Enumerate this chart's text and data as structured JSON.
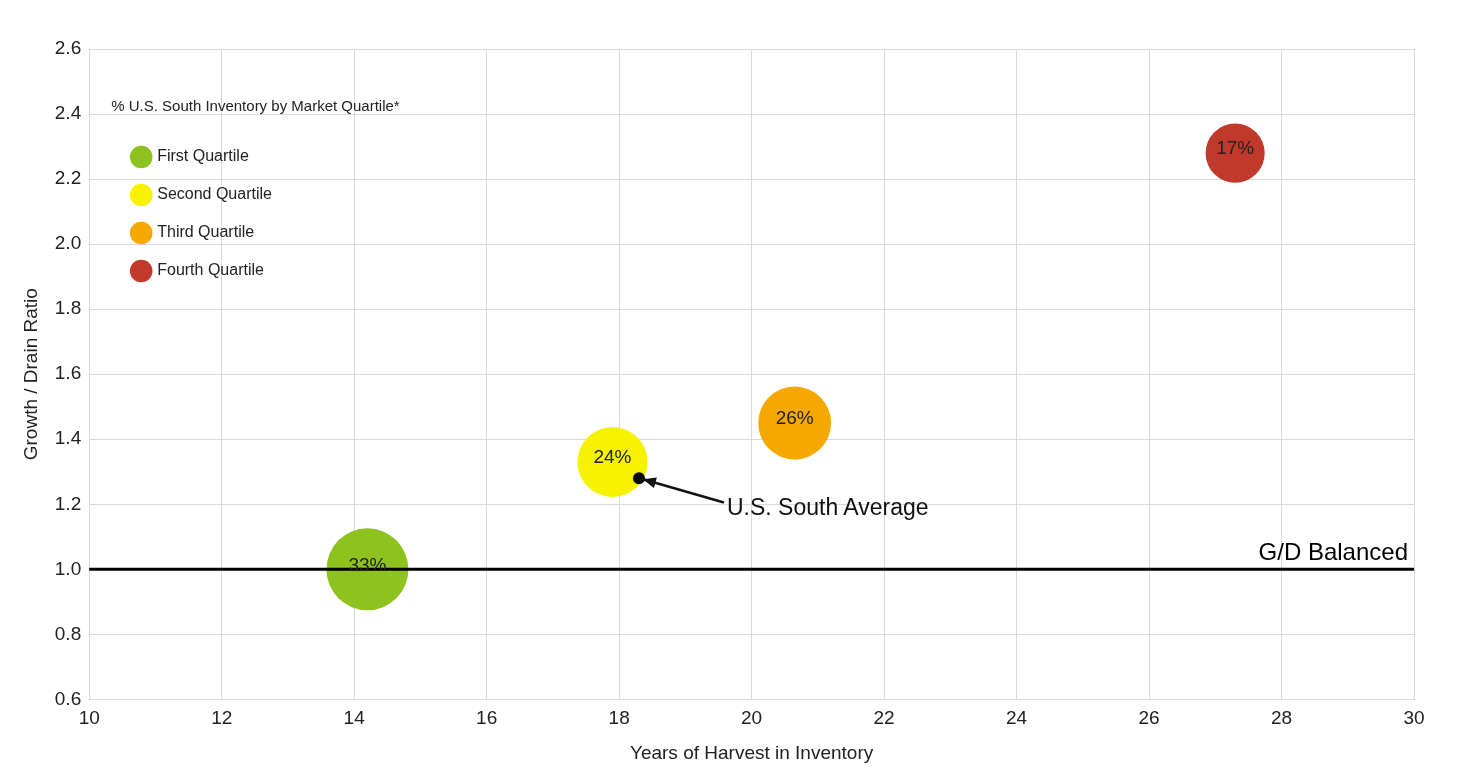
{
  "chart_data": {
    "type": "bubble",
    "xlabel": "Years of Harvest in Inventory",
    "ylabel": "Growth / Drain Ratio",
    "legend_title": "% U.S. South Inventory by Market Quartile*",
    "legend": "top left",
    "grid": true,
    "xlim": [
      10,
      30
    ],
    "xticks": [
      10,
      12,
      14,
      16,
      18,
      20,
      22,
      24,
      26,
      28,
      30
    ],
    "ylim": [
      0.6,
      2.6
    ],
    "yticks": [
      0.6,
      0.8,
      {
        "value": 1,
        "label": "1.0"
      },
      1.2,
      1.4,
      1.6,
      1.8,
      {
        "value": 2,
        "label": "2.0"
      },
      2.2,
      2.4,
      2.6
    ],
    "series": [
      {
        "name": "First Quartile",
        "color": "#8dc21f",
        "x": [
          14.2
        ],
        "values": [
          1.0
        ],
        "sizes": [
          1
        ]
      },
      {
        "name": "Second Quartile",
        "color": "#f7f200",
        "x": [
          17.9
        ],
        "values": [
          1.33
        ],
        "sizes": [
          0.73
        ]
      },
      {
        "name": "Third Quartile",
        "color": "#f5a800",
        "x": [
          20.65
        ],
        "values": [
          1.45
        ],
        "sizes": [
          0.79
        ]
      },
      {
        "name": "Fourth Quartile",
        "color": "#c0392b",
        "x": [
          27.3
        ],
        "values": [
          2.28
        ],
        "sizes": [
          0.52
        ]
      },
      {
        "type": "scatter",
        "color": "#000000",
        "marker": "circle",
        "x": [
          18.3
        ],
        "values": [
          1.28
        ]
      }
    ],
    "ref_lines": [
      {
        "axis": "y",
        "value": 1.0,
        "label": "G/D Balanced",
        "color": "#000000"
      }
    ],
    "annotations": [
      {
        "text": "33%",
        "x": 14.2,
        "y": 1.0
      },
      {
        "text": "24%",
        "x": 17.9,
        "y": 1.33
      },
      {
        "text": "26%",
        "x": 20.65,
        "y": 1.45
      },
      {
        "text": "17%",
        "x": 27.3,
        "y": 2.28
      },
      {
        "text": "U.S. South Average",
        "x": 18.3,
        "y": 1.28
      }
    ]
  }
}
